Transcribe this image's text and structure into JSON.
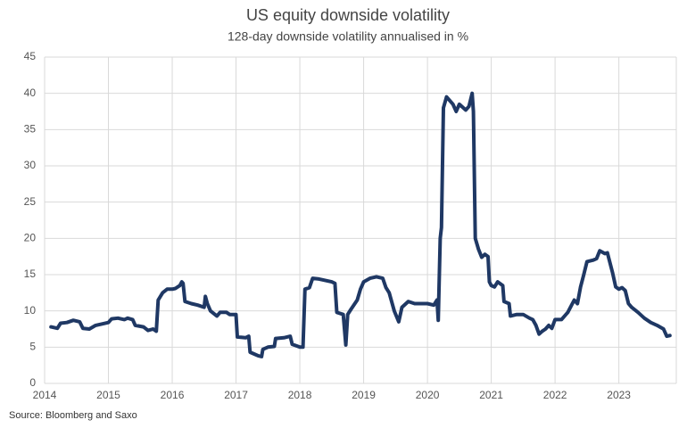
{
  "chart_data": {
    "type": "line",
    "title": "US equity downside volatility",
    "subtitle": "128-day downside volatility annualised in %",
    "source": "Source: Bloomberg and Saxo",
    "color": "#1f3864",
    "grid": true,
    "xlim": [
      2014,
      2023.9
    ],
    "xticks": [
      2014,
      2015,
      2016,
      2017,
      2018,
      2019,
      2020,
      2021,
      2022,
      2023
    ],
    "ylim": [
      0,
      45
    ],
    "yticks": [
      0,
      5,
      10,
      15,
      20,
      25,
      30,
      35,
      40,
      45
    ],
    "x": [
      2014.1,
      2014.2,
      2014.25,
      2014.35,
      2014.45,
      2014.55,
      2014.6,
      2014.7,
      2014.8,
      2014.9,
      2015.0,
      2015.05,
      2015.15,
      2015.25,
      2015.3,
      2015.38,
      2015.42,
      2015.55,
      2015.62,
      2015.7,
      2015.75,
      2015.78,
      2015.85,
      2015.92,
      2016.0,
      2016.05,
      2016.12,
      2016.15,
      2016.17,
      2016.2,
      2016.3,
      2016.4,
      2016.5,
      2016.52,
      2016.55,
      2016.6,
      2016.7,
      2016.75,
      2016.85,
      2016.9,
      2017.0,
      2017.02,
      2017.15,
      2017.2,
      2017.22,
      2017.3,
      2017.35,
      2017.4,
      2017.42,
      2017.5,
      2017.6,
      2017.62,
      2017.75,
      2017.85,
      2017.88,
      2018.0,
      2018.05,
      2018.08,
      2018.15,
      2018.2,
      2018.3,
      2018.5,
      2018.55,
      2018.58,
      2018.68,
      2018.72,
      2018.75,
      2018.8,
      2018.9,
      2018.95,
      2019.0,
      2019.1,
      2019.2,
      2019.3,
      2019.35,
      2019.4,
      2019.48,
      2019.55,
      2019.6,
      2019.7,
      2019.8,
      2019.9,
      2020.0,
      2020.1,
      2020.15,
      2020.17,
      2020.2,
      2020.22,
      2020.25,
      2020.3,
      2020.4,
      2020.45,
      2020.5,
      2020.6,
      2020.65,
      2020.7,
      2020.72,
      2020.75,
      2020.8,
      2020.85,
      2020.9,
      2020.95,
      2020.97,
      2021.0,
      2021.05,
      2021.1,
      2021.18,
      2021.2,
      2021.28,
      2021.3,
      2021.4,
      2021.5,
      2021.6,
      2021.65,
      2021.7,
      2021.75,
      2021.8,
      2021.85,
      2021.9,
      2021.95,
      2022.0,
      2022.1,
      2022.2,
      2022.3,
      2022.35,
      2022.4,
      2022.45,
      2022.5,
      2022.6,
      2022.65,
      2022.7,
      2022.78,
      2022.82,
      2022.85,
      2022.9,
      2022.95,
      2023.0,
      2023.05,
      2023.1,
      2023.15,
      2023.2,
      2023.3,
      2023.4,
      2023.5,
      2023.6,
      2023.7,
      2023.75,
      2023.8
    ],
    "values": [
      7.8,
      7.6,
      8.3,
      8.4,
      8.7,
      8.5,
      7.6,
      7.5,
      8.0,
      8.2,
      8.4,
      8.9,
      9.0,
      8.8,
      9.0,
      8.8,
      8.0,
      7.8,
      7.3,
      7.5,
      7.2,
      11.5,
      12.5,
      13.0,
      13.0,
      13.1,
      13.5,
      14.0,
      13.8,
      11.3,
      11.0,
      10.8,
      10.5,
      12.0,
      11.0,
      10.0,
      9.3,
      9.8,
      9.8,
      9.5,
      9.5,
      6.4,
      6.3,
      6.5,
      4.3,
      4.0,
      3.8,
      3.7,
      4.7,
      5.0,
      5.1,
      6.2,
      6.3,
      6.5,
      5.4,
      5.0,
      5.0,
      13.0,
      13.2,
      14.5,
      14.4,
      14.0,
      13.8,
      9.8,
      9.5,
      5.3,
      9.5,
      10.2,
      11.5,
      13.0,
      14.0,
      14.5,
      14.7,
      14.5,
      13.2,
      12.5,
      10.0,
      8.5,
      10.5,
      11.3,
      11.0,
      11.0,
      11.0,
      10.8,
      11.5,
      8.7,
      20,
      21.5,
      38,
      39.5,
      38.5,
      37.5,
      38.5,
      37.7,
      38.2,
      40.0,
      37.5,
      20.0,
      18.5,
      17.4,
      17.8,
      17.5,
      14,
      13.5,
      13.3,
      14.0,
      13.5,
      11.3,
      11.0,
      9.3,
      9.5,
      9.5,
      9.0,
      8.8,
      8.0,
      6.8,
      7.2,
      7.5,
      8.0,
      7.6,
      8.8,
      8.8,
      9.8,
      11.5,
      11.0,
      13.3,
      15.0,
      16.8,
      17.0,
      17.2,
      18.3,
      17.9,
      18.0,
      17.0,
      15.3,
      13.3,
      13.0,
      13.2,
      12.8,
      11.0,
      10.5,
      9.8,
      9.0,
      8.4,
      8.0,
      7.5,
      6.5,
      6.6
    ]
  }
}
